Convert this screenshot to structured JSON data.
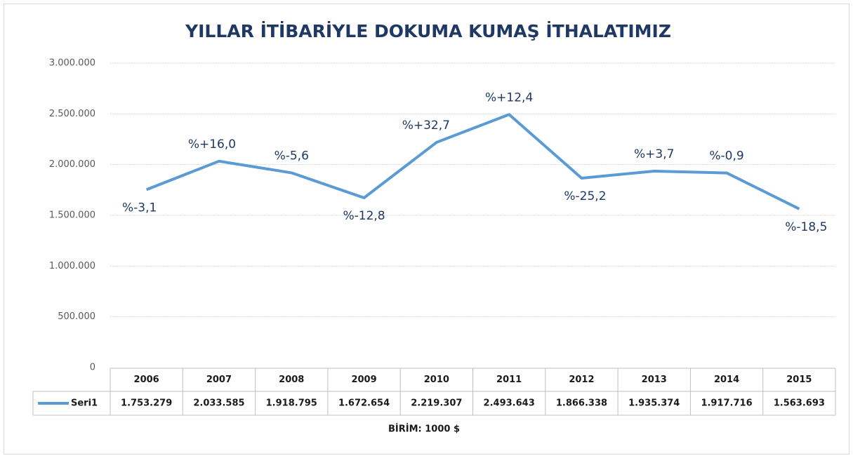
{
  "chart_data": {
    "type": "line",
    "title": "YILLAR İTİBARİYLE DOKUMA KUMAŞ İTHALATIMIZ",
    "categories": [
      "2006",
      "2007",
      "2008",
      "2009",
      "2010",
      "2011",
      "2012",
      "2013",
      "2014",
      "2015"
    ],
    "series": [
      {
        "name": "Seri1",
        "color": "#5b9bd5",
        "values": [
          1753279,
          2033585,
          1918795,
          1672654,
          2219307,
          2493643,
          1866338,
          1935374,
          1917716,
          1563693
        ],
        "value_labels": [
          "1.753.279",
          "2.033.585",
          "1.918.795",
          "1.672.654",
          "2.219.307",
          "2.493.643",
          "1.866.338",
          "1.935.374",
          "1.917.716",
          "1.563.693"
        ]
      }
    ],
    "annotations": [
      "%-3,1",
      "%+16,0",
      "%-5,6",
      "%-12,8",
      "%+32,7",
      "%+12,4",
      "%-25,2",
      "%+3,7",
      "%-0,9",
      "%-18,5"
    ],
    "ylim": [
      0,
      3000000
    ],
    "yticks": [
      0,
      {
        "value": 500000,
        "label": "500.000"
      },
      {
        "value": 1000000,
        "label": "1.000.000"
      },
      {
        "value": 1500000,
        "label": "1.500.000"
      },
      {
        "value": 2000000,
        "label": "2.000.000"
      },
      {
        "value": 2500000,
        "label": "2.500.000"
      },
      {
        "value": 3000000,
        "label": "3.000.000"
      }
    ],
    "grid": true,
    "unit_note": "BİRİM:  1000 $"
  }
}
